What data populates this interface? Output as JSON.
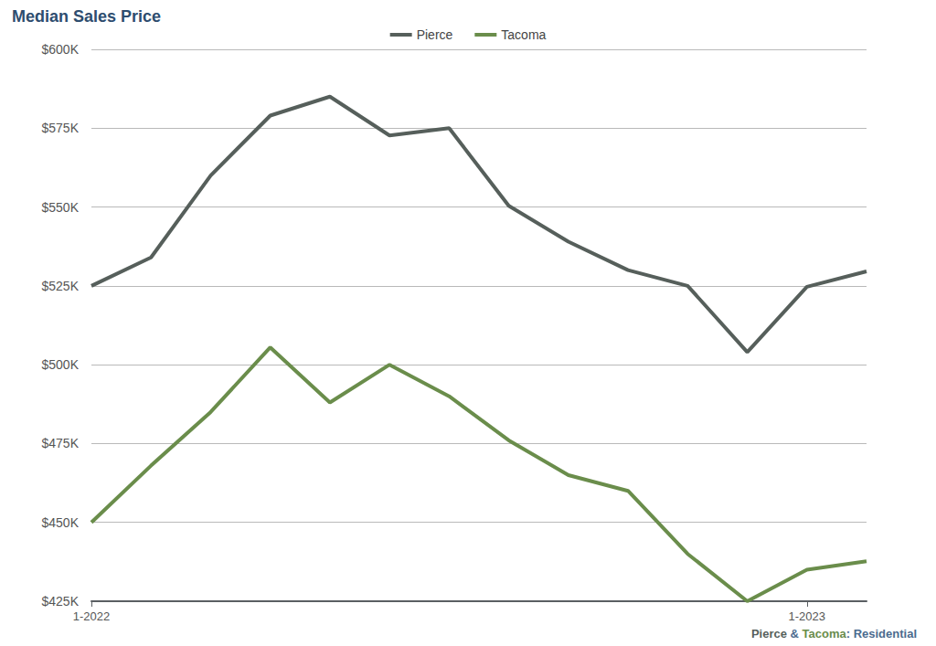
{
  "chart_data": {
    "type": "line",
    "title": "Median Sales Price",
    "annotation": "Pierce & Tacoma: Residential",
    "categories": [
      "1-2022",
      null,
      null,
      null,
      null,
      null,
      null,
      null,
      null,
      null,
      null,
      null,
      "1-2023",
      null
    ],
    "series": [
      {
        "name": "Pierce",
        "color": "#565f5b",
        "values": [
          525000,
          534000,
          560000,
          579000,
          585000,
          572700,
          575000,
          550400,
          539000,
          530000,
          525000,
          504000,
          524700,
          529600
        ]
      },
      {
        "name": "Tacoma",
        "color": "#6a8d4b",
        "values": [
          450000,
          468000,
          485000,
          505500,
          488000,
          500000,
          490000,
          476000,
          465000,
          460000,
          440000,
          425000,
          435000,
          437700
        ]
      }
    ],
    "ylim": [
      425000,
      600000
    ],
    "yticks": [
      {
        "value": 425000,
        "label": "$425K"
      },
      {
        "value": 450000,
        "label": "$450K"
      },
      {
        "value": 475000,
        "label": "$475K"
      },
      {
        "value": 500000,
        "label": "$500K"
      },
      {
        "value": 525000,
        "label": "$525K"
      },
      {
        "value": 550000,
        "label": "$550K"
      },
      {
        "value": 575000,
        "label": "$575K"
      },
      {
        "value": 600000,
        "label": "$600K"
      }
    ],
    "grid": true,
    "legend": "top"
  }
}
